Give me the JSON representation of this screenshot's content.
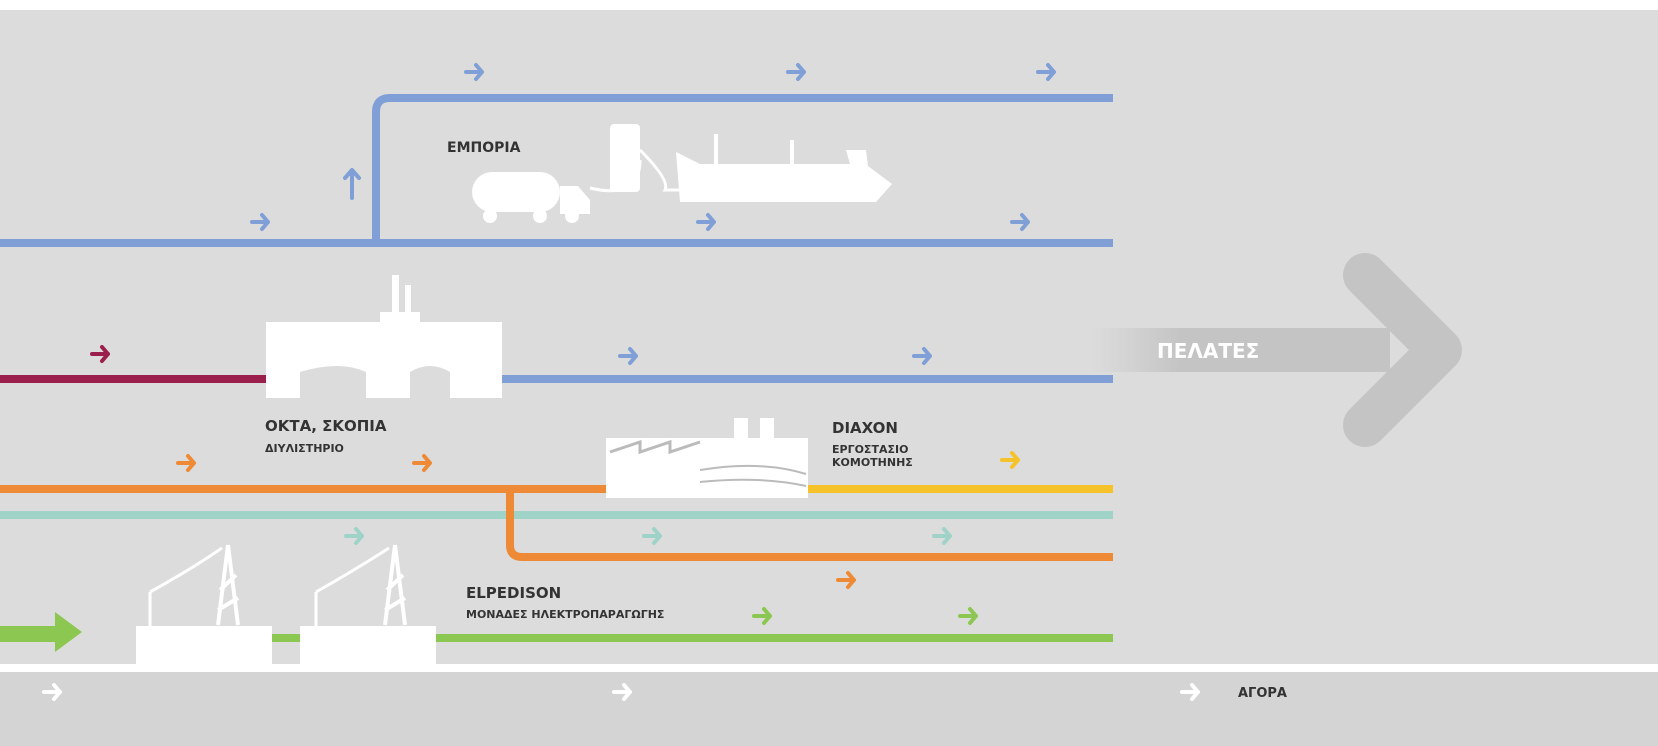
{
  "nodes": [
    {
      "label": "ΕΜΠΟΡΙΑ"
    },
    {
      "label": "ΟΚΤΑ, ΣΚΟΠΙΑ",
      "sublabel": "ΔΙΥΛΙΣΤΗΡΙΟ"
    },
    {
      "label": "DIAXON",
      "sublabel": [
        "ΕΡΓΟΣΤΑΣΙΟ",
        "ΚΟΜΟΤΗΝΗΣ"
      ]
    },
    {
      "label": "ELPEDISON",
      "sublabel": "ΜΟΝΑΔΕΣ ΗΛΕΚΤΡΟΠΑΡΑΓΩΓΗΣ"
    }
  ],
  "customers": "ΠΕΛΑΤΕΣ",
  "market": "ΑΓΟΡΑ"
}
